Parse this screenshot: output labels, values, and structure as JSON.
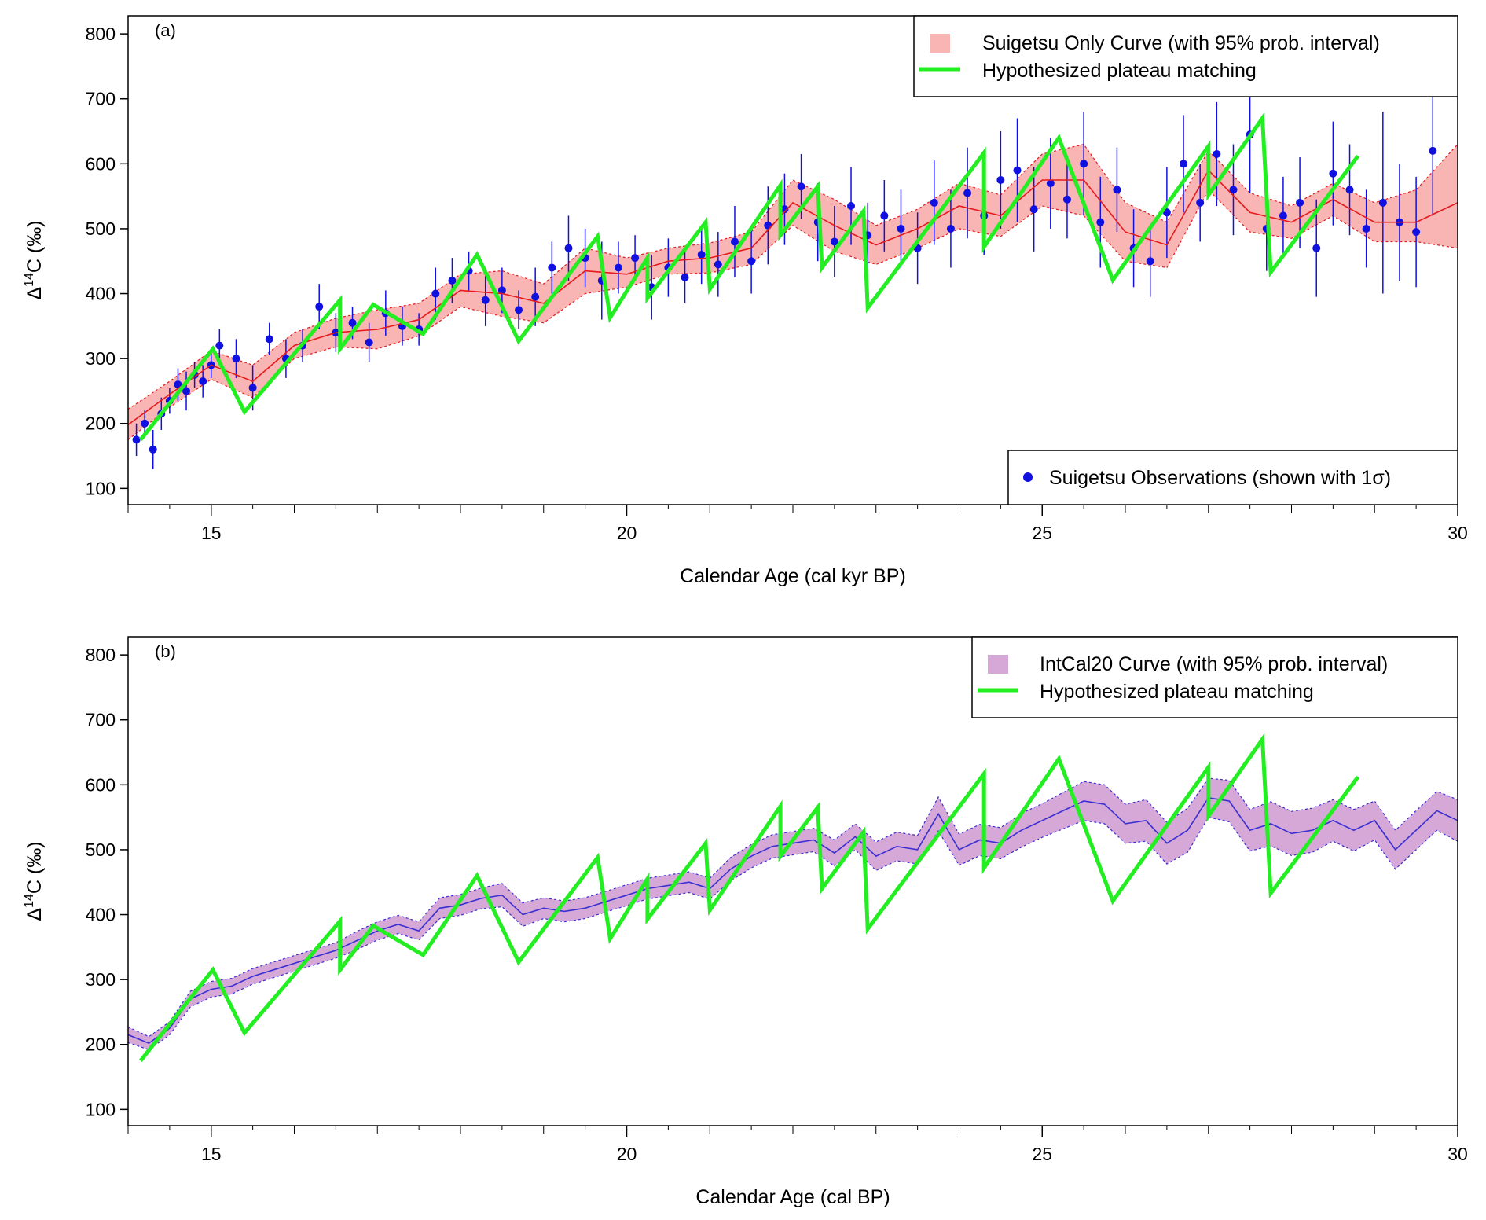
{
  "colors": {
    "suigetsu_band": "#f9b4b4",
    "suigetsu_line": "#e41a1c",
    "observations": "#1010e0",
    "intcal_band": "#d6a8d8",
    "intcal_line": "#3a2fd0",
    "plateau": "#22ee22"
  },
  "chart_data": [
    {
      "type": "line",
      "panel_label": "(a)",
      "xlabel": "Calendar Age (cal kyr BP)",
      "ylabel_main": "Δ",
      "ylabel_sup": "14",
      "ylabel_rest": "C (‰)",
      "xlim": [
        14.0,
        30.0
      ],
      "ylim": [
        75,
        828
      ],
      "xticks": [
        15,
        20,
        25,
        30
      ],
      "xtick_labels": [
        "15",
        "20",
        "25",
        "30"
      ],
      "yticks": [
        100,
        200,
        300,
        400,
        500,
        600,
        700,
        800
      ],
      "ytick_labels": [
        "100",
        "200",
        "300",
        "400",
        "500",
        "600",
        "700",
        "800"
      ],
      "legend_top": [
        {
          "label": "Suigetsu Only Curve (with 95% prob. interval)",
          "symbol": "band"
        },
        {
          "label": "Hypothesized plateau matching",
          "symbol": "line"
        }
      ],
      "legend_bottom": [
        {
          "label": "Suigetsu Observations (shown with 1σ)",
          "symbol": "point"
        }
      ],
      "curve": {
        "name": "Suigetsu Only Curve",
        "x": [
          14.0,
          14.5,
          15.0,
          15.5,
          16.0,
          16.5,
          17.0,
          17.5,
          18.0,
          18.5,
          19.0,
          19.5,
          20.0,
          20.5,
          21.0,
          21.5,
          22.0,
          22.5,
          23.0,
          23.5,
          24.0,
          24.5,
          25.0,
          25.5,
          26.0,
          26.5,
          27.0,
          27.5,
          28.0,
          28.5,
          29.0,
          29.5,
          30.0
        ],
        "mean": [
          198,
          245,
          290,
          265,
          320,
          340,
          345,
          360,
          405,
          400,
          385,
          435,
          430,
          450,
          455,
          470,
          540,
          505,
          475,
          500,
          535,
          520,
          575,
          575,
          495,
          475,
          590,
          525,
          510,
          545,
          510,
          510,
          540
        ],
        "lower": [
          175,
          225,
          268,
          240,
          300,
          318,
          315,
          335,
          380,
          365,
          355,
          400,
          410,
          430,
          432,
          445,
          505,
          465,
          445,
          470,
          500,
          488,
          535,
          520,
          450,
          440,
          560,
          495,
          485,
          520,
          480,
          480,
          470
        ],
        "upper": [
          222,
          265,
          312,
          290,
          340,
          362,
          375,
          385,
          430,
          435,
          415,
          470,
          455,
          470,
          478,
          495,
          575,
          545,
          505,
          530,
          570,
          552,
          615,
          630,
          540,
          510,
          620,
          555,
          535,
          570,
          540,
          560,
          630
        ]
      },
      "observations": {
        "name": "Suigetsu Observations",
        "x": [
          14.1,
          14.2,
          14.3,
          14.4,
          14.5,
          14.6,
          14.7,
          14.8,
          14.9,
          15.0,
          15.1,
          15.3,
          15.5,
          15.7,
          15.9,
          16.1,
          16.3,
          16.5,
          16.7,
          16.9,
          17.1,
          17.3,
          17.5,
          17.7,
          17.9,
          18.1,
          18.3,
          18.5,
          18.7,
          18.9,
          19.1,
          19.3,
          19.5,
          19.7,
          19.9,
          20.1,
          20.3,
          20.5,
          20.7,
          20.9,
          21.1,
          21.3,
          21.5,
          21.7,
          21.9,
          22.1,
          22.3,
          22.5,
          22.7,
          22.9,
          23.1,
          23.3,
          23.5,
          23.7,
          23.9,
          24.1,
          24.3,
          24.5,
          24.7,
          24.9,
          25.1,
          25.3,
          25.5,
          25.7,
          25.9,
          26.1,
          26.3,
          26.5,
          26.7,
          26.9,
          27.1,
          27.3,
          27.5,
          27.7,
          27.9,
          28.1,
          28.3,
          28.5,
          28.7,
          28.9,
          29.1,
          29.3,
          29.5,
          29.7
        ],
        "y": [
          175,
          200,
          160,
          215,
          235,
          260,
          250,
          275,
          265,
          290,
          320,
          300,
          255,
          330,
          300,
          320,
          380,
          340,
          355,
          325,
          370,
          350,
          345,
          400,
          420,
          435,
          390,
          405,
          375,
          395,
          440,
          470,
          455,
          420,
          440,
          455,
          410,
          440,
          425,
          460,
          445,
          480,
          450,
          505,
          530,
          565,
          510,
          480,
          535,
          490,
          520,
          500,
          470,
          540,
          500,
          555,
          520,
          575,
          590,
          530,
          570,
          545,
          600,
          510,
          560,
          470,
          450,
          525,
          600,
          540,
          615,
          560,
          645,
          500,
          520,
          540,
          470,
          585,
          560,
          500,
          540,
          510,
          495,
          620
        ],
        "err": [
          25,
          20,
          30,
          25,
          20,
          25,
          30,
          20,
          25,
          20,
          25,
          30,
          35,
          25,
          30,
          25,
          35,
          30,
          25,
          30,
          35,
          30,
          25,
          40,
          35,
          30,
          40,
          35,
          30,
          45,
          40,
          50,
          45,
          60,
          40,
          35,
          50,
          45,
          40,
          45,
          50,
          55,
          50,
          60,
          55,
          50,
          60,
          55,
          60,
          50,
          55,
          60,
          55,
          65,
          60,
          70,
          60,
          75,
          80,
          65,
          70,
          60,
          80,
          70,
          65,
          60,
          55,
          70,
          75,
          60,
          80,
          70,
          90,
          65,
          60,
          70,
          75,
          80,
          70,
          60,
          140,
          90,
          85,
          100
        ]
      },
      "plateau": {
        "name": "Hypothesized plateau matching",
        "x": [
          14.15,
          15.02,
          15.4,
          16.55,
          16.55,
          16.95,
          17.55,
          18.2,
          18.7,
          19.65,
          19.8,
          20.25,
          20.25,
          20.95,
          21.0,
          21.85,
          21.85,
          22.3,
          22.35,
          22.85,
          22.9,
          24.3,
          24.3,
          25.2,
          25.85,
          27.0,
          27.0,
          27.65,
          27.75,
          28.8
        ],
        "y": [
          175,
          315,
          218,
          390,
          315,
          383,
          338,
          460,
          327,
          488,
          363,
          455,
          393,
          510,
          407,
          567,
          490,
          565,
          440,
          527,
          378,
          617,
          472,
          640,
          421,
          627,
          552,
          670,
          433,
          612
        ]
      }
    },
    {
      "type": "line",
      "panel_label": "(b)",
      "xlabel": "Calendar Age (cal BP)",
      "ylabel_main": "Δ",
      "ylabel_sup": "14",
      "ylabel_rest": "C (‰)",
      "xlim": [
        14.0,
        30.0
      ],
      "ylim": [
        75,
        828
      ],
      "xticks": [
        15,
        20,
        25,
        30
      ],
      "xtick_labels": [
        "15",
        "20",
        "25",
        "30"
      ],
      "yticks": [
        100,
        200,
        300,
        400,
        500,
        600,
        700,
        800
      ],
      "ytick_labels": [
        "100",
        "200",
        "300",
        "400",
        "500",
        "600",
        "700",
        "800"
      ],
      "legend_top": [
        {
          "label": "IntCal20 Curve (with 95% prob. interval)",
          "symbol": "band"
        },
        {
          "label": "Hypothesized plateau matching",
          "symbol": "line"
        }
      ],
      "curve": {
        "name": "IntCal20 Curve",
        "x": [
          14.0,
          14.25,
          14.5,
          14.75,
          15.0,
          15.25,
          15.5,
          15.75,
          16.0,
          16.25,
          16.5,
          16.75,
          17.0,
          17.25,
          17.5,
          17.75,
          18.0,
          18.25,
          18.5,
          18.75,
          19.0,
          19.25,
          19.5,
          19.75,
          20.0,
          20.25,
          20.5,
          20.75,
          21.0,
          21.25,
          21.5,
          21.75,
          22.0,
          22.25,
          22.5,
          22.75,
          23.0,
          23.25,
          23.5,
          23.75,
          24.0,
          24.25,
          24.5,
          24.75,
          25.0,
          25.25,
          25.5,
          25.75,
          26.0,
          26.25,
          26.5,
          26.75,
          27.0,
          27.25,
          27.5,
          27.75,
          28.0,
          28.25,
          28.5,
          28.75,
          29.0,
          29.25,
          29.5,
          29.75,
          30.0
        ],
        "mean": [
          215,
          202,
          225,
          270,
          285,
          290,
          305,
          315,
          325,
          335,
          345,
          360,
          375,
          385,
          375,
          410,
          415,
          425,
          430,
          400,
          410,
          405,
          410,
          420,
          430,
          440,
          445,
          450,
          440,
          470,
          490,
          505,
          510,
          515,
          495,
          520,
          490,
          505,
          500,
          555,
          500,
          515,
          510,
          530,
          545,
          560,
          575,
          570,
          540,
          545,
          510,
          530,
          580,
          575,
          530,
          540,
          525,
          530,
          545,
          530,
          545,
          500,
          530,
          560,
          545
        ],
        "half": [
          12,
          10,
          10,
          12,
          12,
          12,
          12,
          12,
          12,
          12,
          12,
          14,
          14,
          14,
          14,
          16,
          16,
          16,
          18,
          18,
          16,
          16,
          16,
          16,
          16,
          16,
          16,
          16,
          16,
          18,
          18,
          18,
          18,
          18,
          20,
          20,
          22,
          22,
          22,
          26,
          24,
          24,
          24,
          26,
          26,
          28,
          30,
          30,
          30,
          32,
          32,
          34,
          30,
          32,
          32,
          34,
          34,
          34,
          32,
          32,
          30,
          30,
          30,
          30,
          32
        ]
      },
      "plateau": {
        "name": "Hypothesized plateau matching",
        "x": [
          14.15,
          15.02,
          15.4,
          16.55,
          16.55,
          16.95,
          17.55,
          18.2,
          18.7,
          19.65,
          19.8,
          20.25,
          20.25,
          20.95,
          21.0,
          21.85,
          21.85,
          22.3,
          22.35,
          22.85,
          22.9,
          24.3,
          24.3,
          25.2,
          25.85,
          27.0,
          27.0,
          27.65,
          27.75,
          28.8
        ],
        "y": [
          175,
          315,
          218,
          390,
          315,
          383,
          338,
          460,
          327,
          488,
          363,
          455,
          393,
          510,
          407,
          567,
          490,
          565,
          440,
          527,
          378,
          617,
          472,
          640,
          421,
          627,
          552,
          670,
          433,
          612
        ]
      }
    }
  ]
}
